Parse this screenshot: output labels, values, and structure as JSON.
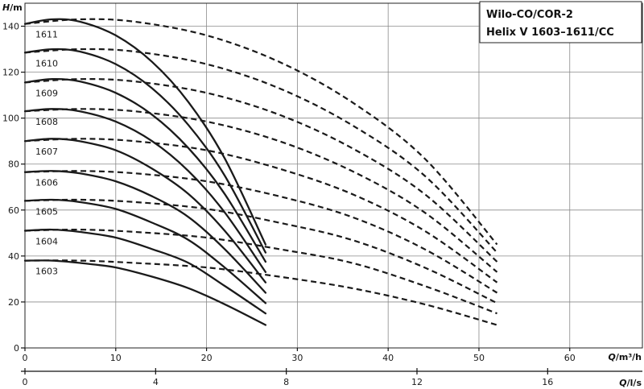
{
  "chart_data": {
    "type": "line",
    "title_lines": [
      "Wilo-CO/COR-2",
      "Helix V 1603–1611/CC"
    ],
    "y_axis": {
      "label_italic": "H",
      "label_unit": "/m",
      "range": [
        0,
        150
      ],
      "ticks": [
        0,
        20,
        40,
        60,
        80,
        100,
        120,
        140
      ]
    },
    "x_axis": {
      "label_italic": "Q",
      "label_unit": "/m³/h",
      "range": [
        0,
        68
      ],
      "ticks": [
        0,
        10,
        20,
        30,
        40,
        50,
        60
      ],
      "tick_labels": [
        "0",
        "10",
        "20",
        "30",
        "40",
        "50",
        "60"
      ]
    },
    "x2_axis": {
      "label_italic": "Q",
      "label_unit": "/l/s",
      "ticks": [
        0,
        4,
        8,
        12,
        16
      ],
      "tick_labels": [
        "0",
        "4",
        "8",
        "12",
        "16"
      ]
    },
    "grid": true,
    "legend": "top-right",
    "series": [
      {
        "name": "1603",
        "single_pump": [
          [
            0,
            38
          ],
          [
            3,
            38
          ],
          [
            6,
            37
          ],
          [
            10,
            35
          ],
          [
            14,
            31
          ],
          [
            18,
            26
          ],
          [
            22,
            19
          ],
          [
            26.5,
            10
          ]
        ],
        "two_pumps": [
          [
            0,
            38
          ],
          [
            6,
            38
          ],
          [
            12,
            37
          ],
          [
            20,
            35
          ],
          [
            28,
            31
          ],
          [
            36,
            26
          ],
          [
            44,
            19
          ],
          [
            52,
            10
          ]
        ]
      },
      {
        "name": "1604",
        "single_pump": [
          [
            0,
            51
          ],
          [
            3,
            51.5
          ],
          [
            6,
            50.5
          ],
          [
            10,
            48
          ],
          [
            14,
            43
          ],
          [
            18,
            37
          ],
          [
            22,
            27
          ],
          [
            26.5,
            15
          ]
        ],
        "two_pumps": [
          [
            0,
            51
          ],
          [
            6,
            51.5
          ],
          [
            12,
            50.5
          ],
          [
            20,
            48
          ],
          [
            28,
            43
          ],
          [
            36,
            37
          ],
          [
            44,
            27
          ],
          [
            52,
            15
          ]
        ]
      },
      {
        "name": "1605",
        "single_pump": [
          [
            0,
            64
          ],
          [
            3,
            64.5
          ],
          [
            6,
            63.5
          ],
          [
            10,
            60.5
          ],
          [
            14,
            54.5
          ],
          [
            18,
            47
          ],
          [
            22,
            35
          ],
          [
            26.5,
            19.5
          ]
        ],
        "two_pumps": [
          [
            0,
            64
          ],
          [
            6,
            64.5
          ],
          [
            12,
            63.5
          ],
          [
            20,
            60.5
          ],
          [
            28,
            54.5
          ],
          [
            36,
            47
          ],
          [
            44,
            35
          ],
          [
            52,
            19.5
          ]
        ]
      },
      {
        "name": "1606",
        "single_pump": [
          [
            0,
            76.5
          ],
          [
            3,
            77
          ],
          [
            6,
            76
          ],
          [
            10,
            72.5
          ],
          [
            14,
            66
          ],
          [
            18,
            57
          ],
          [
            22,
            43
          ],
          [
            26.5,
            24
          ]
        ],
        "two_pumps": [
          [
            0,
            76.5
          ],
          [
            6,
            77
          ],
          [
            12,
            76
          ],
          [
            20,
            72.5
          ],
          [
            28,
            66
          ],
          [
            36,
            57
          ],
          [
            44,
            43
          ],
          [
            52,
            24
          ]
        ]
      },
      {
        "name": "1607",
        "single_pump": [
          [
            0,
            90
          ],
          [
            3,
            91
          ],
          [
            6,
            90
          ],
          [
            10,
            86
          ],
          [
            14,
            78
          ],
          [
            18,
            67
          ],
          [
            22,
            51
          ],
          [
            26.5,
            28.5
          ]
        ],
        "two_pumps": [
          [
            0,
            90
          ],
          [
            6,
            91
          ],
          [
            12,
            90
          ],
          [
            20,
            86
          ],
          [
            28,
            78
          ],
          [
            36,
            67
          ],
          [
            44,
            51
          ],
          [
            52,
            28.5
          ]
        ]
      },
      {
        "name": "1608",
        "single_pump": [
          [
            0,
            103
          ],
          [
            3,
            104
          ],
          [
            6,
            103
          ],
          [
            10,
            98.5
          ],
          [
            14,
            90
          ],
          [
            18,
            77
          ],
          [
            22,
            59
          ],
          [
            26.5,
            33
          ]
        ],
        "two_pumps": [
          [
            0,
            103
          ],
          [
            6,
            104
          ],
          [
            12,
            103
          ],
          [
            20,
            98.5
          ],
          [
            28,
            90
          ],
          [
            36,
            77
          ],
          [
            44,
            59
          ],
          [
            52,
            33
          ]
        ]
      },
      {
        "name": "1609",
        "single_pump": [
          [
            0,
            115.5
          ],
          [
            3,
            117
          ],
          [
            6,
            116
          ],
          [
            10,
            111
          ],
          [
            14,
            101.5
          ],
          [
            18,
            87
          ],
          [
            22,
            67
          ],
          [
            26.5,
            37.5
          ]
        ],
        "two_pumps": [
          [
            0,
            115.5
          ],
          [
            6,
            117
          ],
          [
            12,
            116
          ],
          [
            20,
            111
          ],
          [
            28,
            101.5
          ],
          [
            36,
            87
          ],
          [
            44,
            67
          ],
          [
            52,
            37.5
          ]
        ]
      },
      {
        "name": "1610",
        "single_pump": [
          [
            0,
            128.5
          ],
          [
            3,
            130
          ],
          [
            6,
            129
          ],
          [
            10,
            123.5
          ],
          [
            14,
            113
          ],
          [
            18,
            97
          ],
          [
            22,
            75
          ],
          [
            26.5,
            41.5
          ]
        ],
        "two_pumps": [
          [
            0,
            128.5
          ],
          [
            6,
            130
          ],
          [
            12,
            129
          ],
          [
            20,
            123.5
          ],
          [
            28,
            113
          ],
          [
            36,
            97
          ],
          [
            44,
            75
          ],
          [
            52,
            41.5
          ]
        ]
      },
      {
        "name": "1611",
        "single_pump": [
          [
            0,
            141
          ],
          [
            3,
            143
          ],
          [
            6,
            142
          ],
          [
            10,
            136
          ],
          [
            14,
            124.5
          ],
          [
            18,
            107
          ],
          [
            22,
            82.5
          ],
          [
            26.5,
            45
          ]
        ],
        "two_pumps": [
          [
            0,
            141
          ],
          [
            6,
            143
          ],
          [
            12,
            142
          ],
          [
            20,
            136
          ],
          [
            28,
            124.5
          ],
          [
            36,
            107
          ],
          [
            44,
            82.5
          ],
          [
            52,
            45
          ]
        ]
      }
    ]
  }
}
